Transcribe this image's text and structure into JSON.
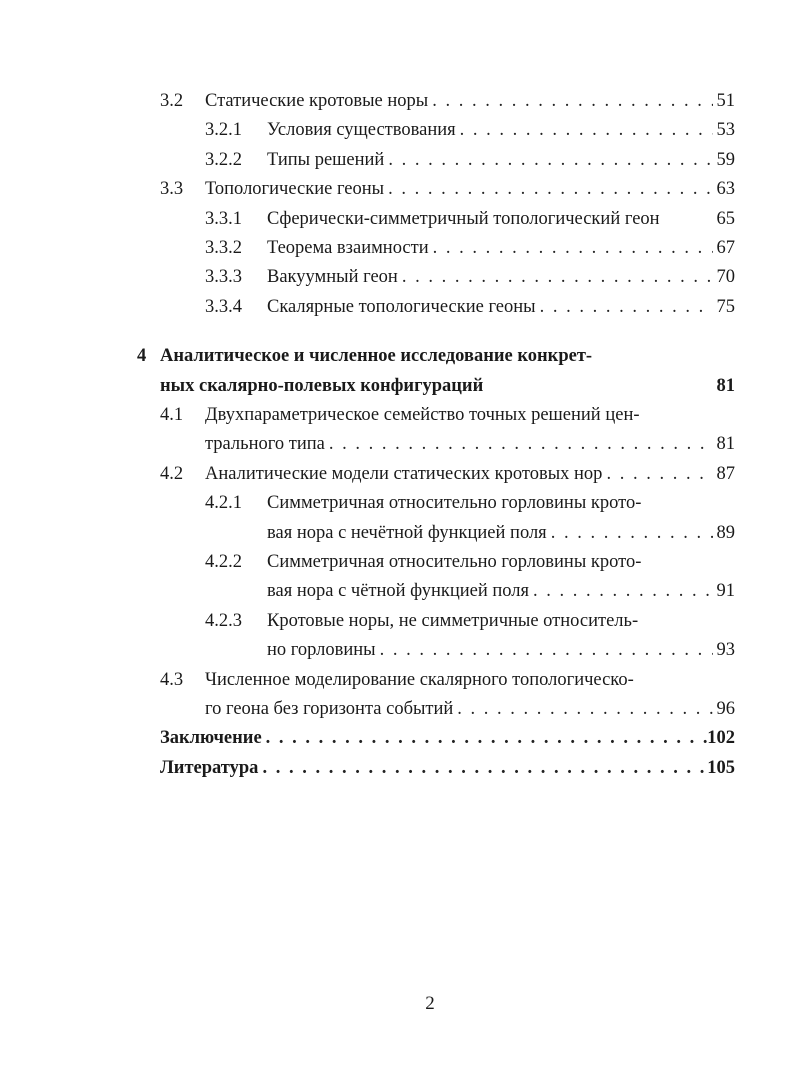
{
  "toc": [
    {
      "number": "3.2",
      "level": 1,
      "lines": [
        "Статические кротовые норы"
      ],
      "page": "51"
    },
    {
      "number": "3.2.1",
      "level": 2,
      "lines": [
        "Условия существования"
      ],
      "page": "53"
    },
    {
      "number": "3.2.2",
      "level": 2,
      "lines": [
        "Типы решений"
      ],
      "page": "59"
    },
    {
      "number": "3.3",
      "level": 1,
      "lines": [
        "Топологические геоны"
      ],
      "page": "63"
    },
    {
      "number": "3.3.1",
      "level": 2,
      "lines": [
        "Сферически-симметричный топологический геон"
      ],
      "page": "65",
      "noleader": true
    },
    {
      "number": "3.3.2",
      "level": 2,
      "lines": [
        "Теорема взаимности"
      ],
      "page": "67"
    },
    {
      "number": "3.3.3",
      "level": 2,
      "lines": [
        "Вакуумный геон"
      ],
      "page": "70"
    },
    {
      "number": "3.3.4",
      "level": 2,
      "lines": [
        "Скалярные топологические геоны"
      ],
      "page": "75"
    },
    {
      "number": "4",
      "level": 0,
      "bold": true,
      "lines": [
        "Аналитическое и численное исследование конкрет-",
        "ных скалярно-полевых конфигураций"
      ],
      "page": "81",
      "noleader": true
    },
    {
      "number": "4.1",
      "level": 1,
      "lines": [
        "Двухпараметрическое семейство точных решений цен-",
        "трального типа"
      ],
      "page": "81"
    },
    {
      "number": "4.2",
      "level": 1,
      "lines": [
        "Аналитические модели статических кротовых нор"
      ],
      "page": "87"
    },
    {
      "number": "4.2.1",
      "level": 2,
      "lines": [
        "Симметричная относительно горловины крото-",
        "вая нора с нечётной функцией поля"
      ],
      "page": "89"
    },
    {
      "number": "4.2.2",
      "level": 2,
      "lines": [
        "Симметричная относительно горловины крото-",
        "вая нора с чётной функцией поля"
      ],
      "page": "91"
    },
    {
      "number": "4.2.3",
      "level": 2,
      "lines": [
        "Кротовые норы, не симметричные относитель-",
        "но горловины"
      ],
      "page": "93"
    },
    {
      "number": "4.3",
      "level": 1,
      "lines": [
        "Численное моделирование скалярного топологическо-",
        "го геона без горизонта событий"
      ],
      "page": "96"
    },
    {
      "number": "",
      "level": -1,
      "bold": true,
      "lines": [
        "Заключение"
      ],
      "page": "102"
    },
    {
      "number": "",
      "level": -1,
      "bold": true,
      "lines": [
        "Литература"
      ],
      "page": "105"
    }
  ],
  "page_number": "2"
}
